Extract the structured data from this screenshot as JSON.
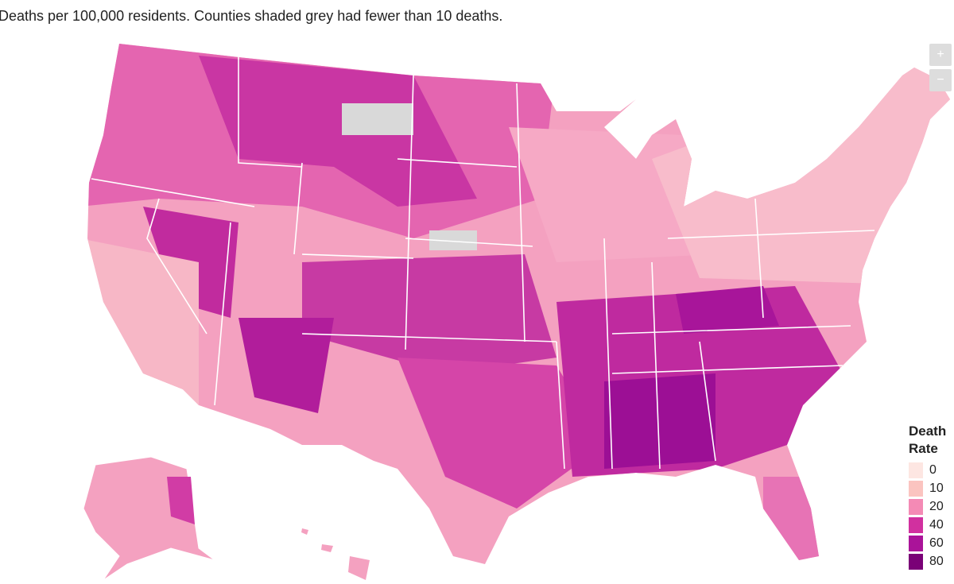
{
  "subtitle": "Deaths per 100,000 residents. Counties shaded grey had fewer than 10 deaths.",
  "zoom": {
    "in": "+",
    "out": "−"
  },
  "legend": {
    "title": "Death Rate",
    "items": [
      {
        "label": 0,
        "color": "#fde6e2"
      },
      {
        "label": 10,
        "color": "#fbc4c0"
      },
      {
        "label": 20,
        "color": "#f48ab5"
      },
      {
        "label": 40,
        "color": "#d1309f"
      },
      {
        "label": 60,
        "color": "#aa1399"
      },
      {
        "label": 80,
        "color": "#7a0177"
      }
    ]
  }
}
